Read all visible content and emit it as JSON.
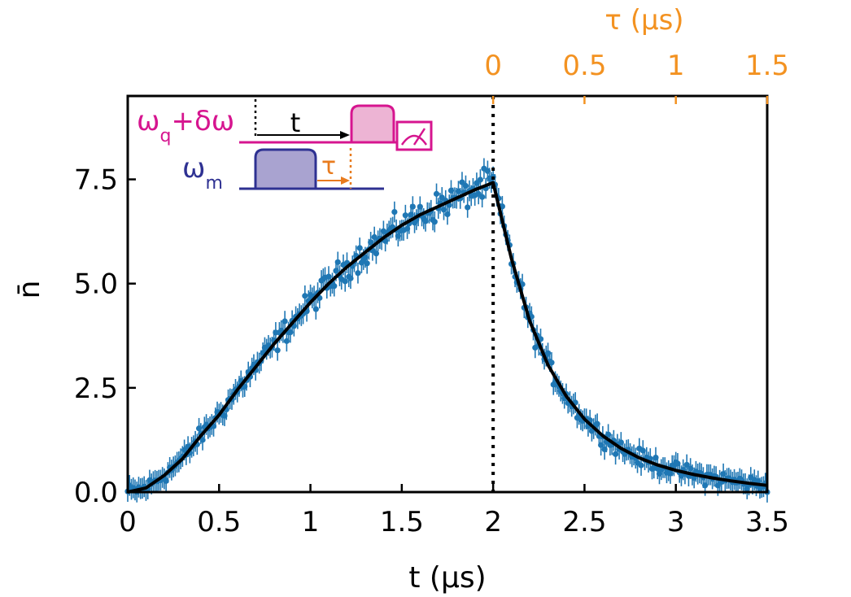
{
  "chart_data": {
    "type": "scatter",
    "title": "",
    "xlabel": "t (μs)",
    "ylabel": "n̄",
    "xlim": [
      0,
      3.5
    ],
    "ylim": [
      0,
      9.5
    ],
    "x_ticks": [
      0,
      0.5,
      1,
      1.5,
      2,
      2.5,
      3,
      3.5
    ],
    "x_tick_labels": [
      "0",
      "0.5",
      "1",
      "1.5",
      "2",
      "2.5",
      "3",
      "3.5"
    ],
    "y_ticks": [
      0,
      2.5,
      5,
      7.5
    ],
    "y_tick_labels": [
      "0.0",
      "2.5",
      "5.0",
      "7.5"
    ],
    "top_axis": {
      "label": "τ (μs)",
      "ticks": [
        0,
        0.5,
        1,
        1.5
      ],
      "tick_labels": [
        "0",
        "0.5",
        "1",
        "1.5"
      ],
      "offset_t": 2.0,
      "color": "#F39221"
    },
    "vertical_marker_t": 2.0,
    "series": [
      {
        "kind": "measured",
        "color": "#1f77b4",
        "x_step": 0.01,
        "x_range": [
          0,
          3.5
        ],
        "error_bar_typical": 0.25
      },
      {
        "kind": "fit",
        "color": "#000000",
        "points": [
          [
            0.0,
            0.0
          ],
          [
            0.1,
            0.1
          ],
          [
            0.2,
            0.4
          ],
          [
            0.3,
            0.8
          ],
          [
            0.4,
            1.35
          ],
          [
            0.5,
            1.85
          ],
          [
            0.6,
            2.45
          ],
          [
            0.7,
            3.0
          ],
          [
            0.8,
            3.55
          ],
          [
            0.9,
            4.05
          ],
          [
            1.0,
            4.55
          ],
          [
            1.1,
            5.0
          ],
          [
            1.2,
            5.4
          ],
          [
            1.3,
            5.75
          ],
          [
            1.4,
            6.1
          ],
          [
            1.5,
            6.4
          ],
          [
            1.6,
            6.65
          ],
          [
            1.7,
            6.85
          ],
          [
            1.8,
            7.05
          ],
          [
            1.9,
            7.25
          ],
          [
            2.0,
            7.42
          ],
          [
            2.1,
            5.6
          ],
          [
            2.2,
            4.1
          ],
          [
            2.3,
            3.05
          ],
          [
            2.4,
            2.3
          ],
          [
            2.5,
            1.75
          ],
          [
            2.6,
            1.35
          ],
          [
            2.7,
            1.05
          ],
          [
            2.8,
            0.82
          ],
          [
            2.9,
            0.65
          ],
          [
            3.0,
            0.52
          ],
          [
            3.1,
            0.42
          ],
          [
            3.2,
            0.34
          ],
          [
            3.3,
            0.27
          ],
          [
            3.4,
            0.21
          ],
          [
            3.5,
            0.16
          ]
        ]
      }
    ]
  },
  "inset": {
    "qubit_label": "ω",
    "qubit_sub": "q",
    "qubit_suffix": "+δω",
    "mode_label": "ω",
    "mode_sub": "m",
    "t_label": "t",
    "tau_label": "τ",
    "colors": {
      "qubit": "#D6158F",
      "qubit_fill": "#EDB4D4",
      "mode": "#2E3192",
      "mode_fill": "#A9A3D0",
      "tau": "#E87B1E"
    }
  }
}
